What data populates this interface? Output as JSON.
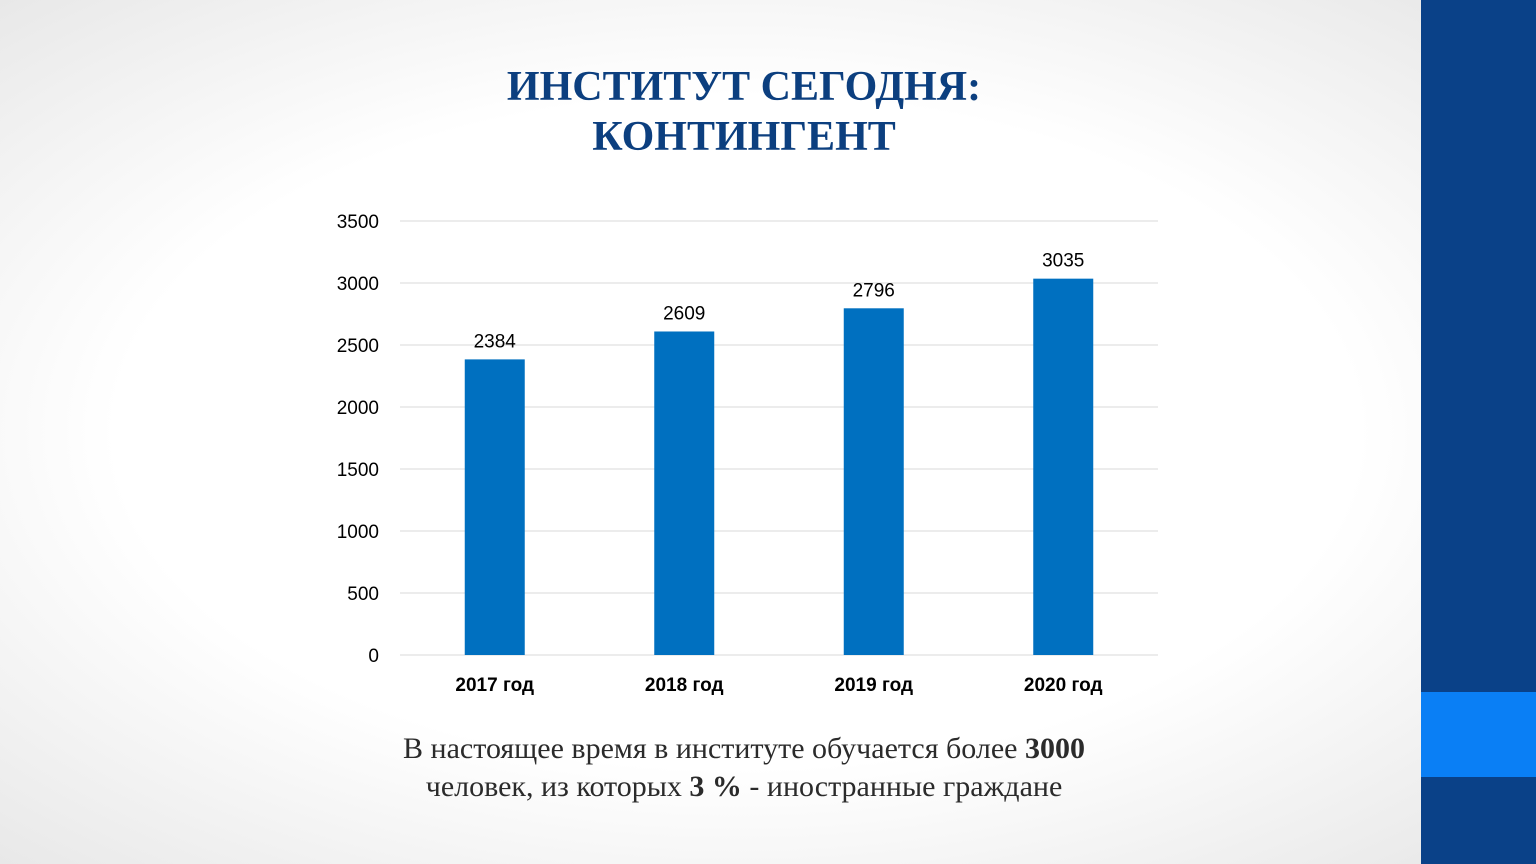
{
  "slide": {
    "title_line1": "ИНСТИТУТ СЕГОДНЯ:",
    "title_line2": "КОНТИНГЕНТ"
  },
  "caption": {
    "line1_text": "В настоящее время в институте обучается более ",
    "line1_bold": "3000",
    "line2_text_a": "человек, из которых ",
    "line2_bold": "3 %",
    "line2_text_b": " - иностранные граждане"
  },
  "colors": {
    "title": "#0c3f7f",
    "bar": "#0070c0",
    "sidebar": "#0a4188",
    "sidebar_accent": "#0a7ff5",
    "gridline": "#d9d9d9"
  },
  "chart_data": {
    "type": "bar",
    "categories": [
      "2017 год",
      "2018 год",
      "2019 год",
      "2020 год"
    ],
    "values": [
      2384,
      2609,
      2796,
      3035
    ],
    "data_labels": [
      "2384",
      "2609",
      "2796",
      "3035"
    ],
    "ylim": [
      0,
      3500
    ],
    "yticks": [
      "0",
      "500",
      "1000",
      "1500",
      "2000",
      "2500",
      "3000",
      "3500"
    ],
    "grid": true,
    "legend": "none"
  }
}
